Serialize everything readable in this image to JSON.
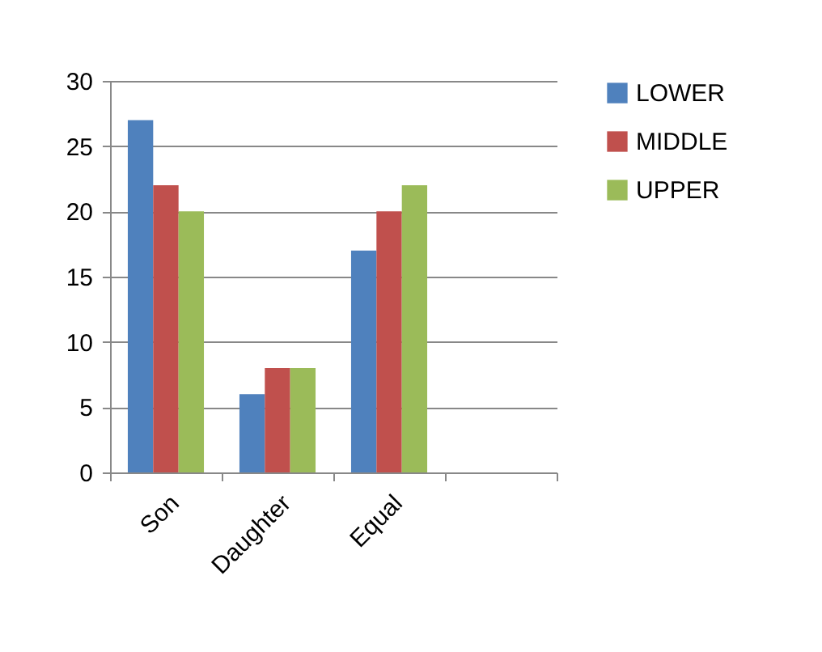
{
  "chart_data": {
    "type": "bar",
    "categories": [
      "Son",
      "Daughter",
      "Equal",
      null
    ],
    "series": [
      {
        "name": "LOWER",
        "color": "#4f81bd",
        "values": [
          27,
          6,
          17,
          null
        ]
      },
      {
        "name": "MIDDLE",
        "color": "#c0504d",
        "values": [
          22,
          8,
          20,
          null
        ]
      },
      {
        "name": "UPPER",
        "color": "#9bbb59",
        "values": [
          20,
          8,
          22,
          null
        ]
      }
    ],
    "ylim": [
      0,
      30
    ],
    "yticks": [
      0,
      5,
      10,
      15,
      20,
      25,
      30
    ],
    "grid": "y",
    "legend": "right"
  }
}
